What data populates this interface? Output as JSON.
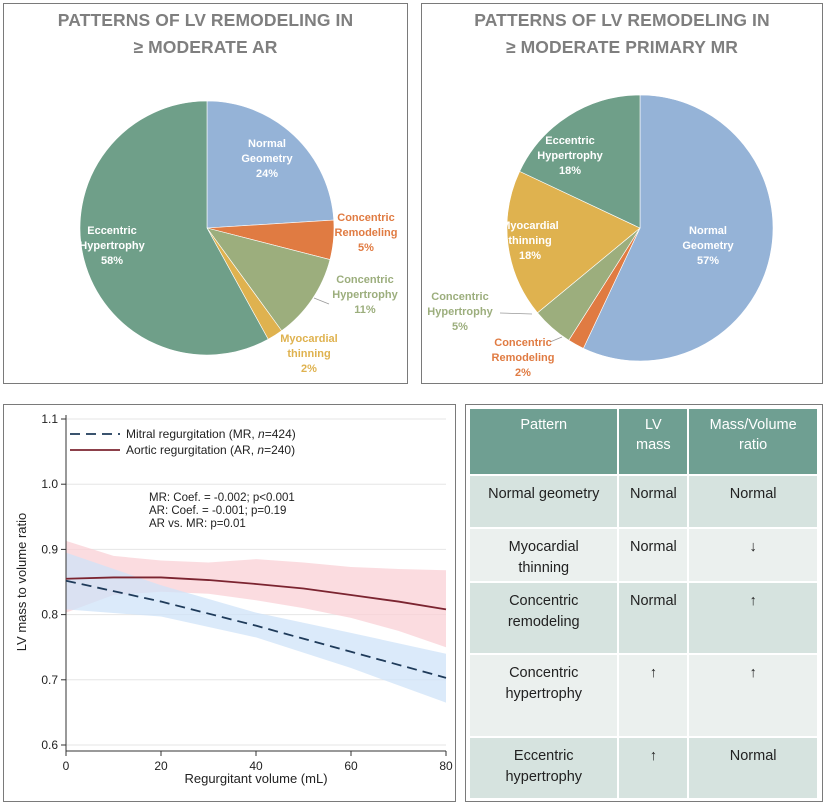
{
  "pies": [
    {
      "title_line1": "PATTERNS OF LV REMODELING IN",
      "title_line2": "≥  MODERATE AR",
      "slices": [
        {
          "label": [
            "Normal",
            "Geometry",
            "24%"
          ],
          "value": 24,
          "color": "#95b3d7"
        },
        {
          "label": [
            "Concentric",
            "Remodeling",
            "5%"
          ],
          "value": 5,
          "color": "#e07b42"
        },
        {
          "label": [
            "Concentric",
            "Hypertrophy",
            "11%"
          ],
          "value": 11,
          "color": "#9cae7d"
        },
        {
          "label": [
            "Myocardial",
            "thinning",
            "2%"
          ],
          "value": 2,
          "color": "#dfb24f"
        },
        {
          "label": [
            "Eccentric",
            "Hypertrophy",
            "58%"
          ],
          "value": 58,
          "color": "#6f9f89"
        }
      ]
    },
    {
      "title_line1": "PATTERNS OF LV REMODELING IN",
      "title_line2": "≥  MODERATE PRIMARY MR",
      "slices": [
        {
          "label": [
            "Normal",
            "Geometry",
            "57%"
          ],
          "value": 57,
          "color": "#95b3d7"
        },
        {
          "label": [
            "Concentric",
            "Remodeling",
            "2%"
          ],
          "value": 2,
          "color": "#e07b42"
        },
        {
          "label": [
            "Concentric",
            "Hypertrophy",
            "5%"
          ],
          "value": 5,
          "color": "#9cae7d"
        },
        {
          "label": [
            "Myocardial",
            "thinning",
            "18%"
          ],
          "value": 18,
          "color": "#dfb24f"
        },
        {
          "label": [
            "Eccentric",
            "Hypertrophy",
            "18%"
          ],
          "value": 18,
          "color": "#6f9f89"
        }
      ]
    }
  ],
  "chart_data": {
    "type": "line",
    "xlabel": "Regurgitant volume (mL)",
    "ylabel": "LV mass to volume ratio",
    "xlim": [
      0,
      80
    ],
    "ylim": [
      0.6,
      1.1
    ],
    "x_ticks": [
      0,
      20,
      40,
      60,
      80
    ],
    "y_ticks": [
      0.6,
      0.7,
      0.8,
      0.9,
      1.0,
      1.1
    ],
    "y_tick_labels": [
      "0.6",
      "0.7",
      "0.8",
      "0.9",
      "1.0",
      "1.1"
    ],
    "grid": true,
    "legend_position": "top-left",
    "series": [
      {
        "name_prefix": "Mitral regurgitation (MR, ",
        "name_n": "n",
        "name_suffix": "=424)",
        "style": "dashed",
        "color": "#1f3b5a",
        "band_color": "#cfe3f8",
        "x": [
          0,
          20,
          40,
          60,
          80
        ],
        "values": [
          0.852,
          0.82,
          0.783,
          0.743,
          0.703
        ],
        "ci_lower": [
          0.808,
          0.797,
          0.765,
          0.718,
          0.665
        ],
        "ci_upper": [
          0.895,
          0.845,
          0.803,
          0.772,
          0.74
        ]
      },
      {
        "name_prefix": "Aortic regurgitation (AR, ",
        "name_n": "n",
        "name_suffix": "=240)",
        "style": "solid",
        "color": "#7b2430",
        "band_color": "#f9d0d5",
        "x": [
          0,
          10,
          20,
          30,
          40,
          50,
          60,
          70,
          80
        ],
        "values": [
          0.855,
          0.857,
          0.857,
          0.853,
          0.847,
          0.84,
          0.83,
          0.82,
          0.808
        ],
        "ci_lower": [
          0.803,
          0.83,
          0.835,
          0.832,
          0.822,
          0.81,
          0.795,
          0.775,
          0.75
        ],
        "ci_upper": [
          0.913,
          0.89,
          0.883,
          0.88,
          0.885,
          0.88,
          0.873,
          0.87,
          0.868
        ]
      }
    ],
    "annotations": [
      "MR: Coef. = -0.002; p<0.001",
      "AR:  Coef. = -0.001; p=0.19",
      "AR vs. MR: p=0.01"
    ]
  },
  "table": {
    "headers": [
      [
        "Pattern"
      ],
      [
        "LV",
        "mass"
      ],
      [
        "Mass/Volume",
        "ratio"
      ]
    ],
    "rows": [
      [
        [
          "Normal geometry"
        ],
        [
          "Normal"
        ],
        [
          "Normal"
        ]
      ],
      [
        [
          "Myocardial",
          "thinning"
        ],
        [
          "Normal"
        ],
        [
          "↓"
        ]
      ],
      [
        [
          "Concentric",
          "remodeling"
        ],
        [
          "Normal"
        ],
        [
          "↑"
        ]
      ],
      [
        [
          "Concentric",
          "hypertrophy"
        ],
        [
          "↑"
        ],
        [
          "↑"
        ]
      ],
      [
        [
          "Eccentric",
          "hypertrophy"
        ],
        [
          "↑"
        ],
        [
          "Normal"
        ]
      ]
    ]
  }
}
